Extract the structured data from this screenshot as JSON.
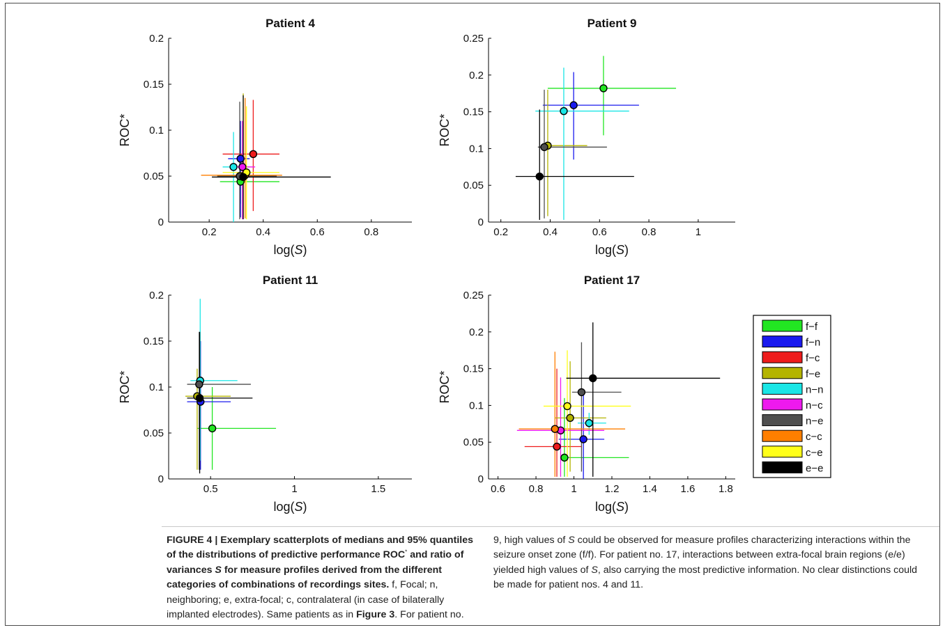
{
  "chart_data": [
    {
      "type": "scatter",
      "title": "Patient 4",
      "xlabel": "log(S)",
      "ylabel": "ROC*",
      "xlim": [
        0.05,
        0.95
      ],
      "ylim": [
        0,
        0.2
      ],
      "xticks": [
        0.2,
        0.4,
        0.6,
        0.8
      ],
      "xticklabels": [
        "0.2",
        "0.4",
        "0.6",
        "0.8"
      ],
      "yticks": [
        0,
        0.05,
        0.1,
        0.15,
        0.2
      ],
      "yticklabels": [
        "0",
        "0.05",
        "0.1",
        "0.15",
        "0.2"
      ],
      "points": [
        {
          "cat": "f-f",
          "x": 0.316,
          "y": 0.044,
          "xlo": 0.24,
          "xhi": 0.46,
          "ylo": 0.02,
          "yhi": 0.105
        },
        {
          "cat": "f-n",
          "x": 0.316,
          "y": 0.069,
          "xlo": 0.27,
          "xhi": 0.35,
          "ylo": 0.005,
          "yhi": 0.11
        },
        {
          "cat": "f-c",
          "x": 0.363,
          "y": 0.074,
          "xlo": 0.25,
          "xhi": 0.46,
          "ylo": 0.012,
          "yhi": 0.133
        },
        {
          "cat": "f-e",
          "x": 0.326,
          "y": 0.05,
          "xlo": 0.23,
          "xhi": 0.44,
          "ylo": 0.005,
          "yhi": 0.14
        },
        {
          "cat": "n-n",
          "x": 0.29,
          "y": 0.06,
          "xlo": 0.25,
          "xhi": 0.34,
          "ylo": 0.0,
          "yhi": 0.098
        },
        {
          "cat": "n-c",
          "x": 0.323,
          "y": 0.06,
          "xlo": 0.29,
          "xhi": 0.37,
          "ylo": 0.003,
          "yhi": 0.11
        },
        {
          "cat": "n-e",
          "x": 0.313,
          "y": 0.05,
          "xlo": 0.23,
          "xhi": 0.45,
          "ylo": 0.003,
          "yhi": 0.131
        },
        {
          "cat": "c-c",
          "x": 0.333,
          "y": 0.051,
          "xlo": 0.17,
          "xhi": 0.47,
          "ylo": 0.004,
          "yhi": 0.135
        },
        {
          "cat": "c-e",
          "x": 0.338,
          "y": 0.054,
          "xlo": 0.25,
          "xhi": 0.46,
          "ylo": 0.003,
          "yhi": 0.126
        },
        {
          "cat": "e-e",
          "x": 0.326,
          "y": 0.049,
          "xlo": 0.21,
          "xhi": 0.65,
          "ylo": 0.003,
          "yhi": 0.138
        }
      ]
    },
    {
      "type": "scatter",
      "title": "Patient 9",
      "xlabel": "log(S)",
      "ylabel": "ROC*",
      "xlim": [
        0.15,
        1.15
      ],
      "ylim": [
        0,
        0.25
      ],
      "xticks": [
        0.2,
        0.4,
        0.6,
        0.8,
        1
      ],
      "xticklabels": [
        "0.2",
        "0.4",
        "0.6",
        "0.8",
        "1"
      ],
      "yticks": [
        0,
        0.05,
        0.1,
        0.15,
        0.2,
        0.25
      ],
      "yticklabels": [
        "0",
        "0.05",
        "0.1",
        "0.15",
        "0.2",
        "0.25"
      ],
      "points": [
        {
          "cat": "f-f",
          "x": 0.616,
          "y": 0.182,
          "xlo": 0.39,
          "xhi": 0.91,
          "ylo": 0.118,
          "yhi": 0.226
        },
        {
          "cat": "f-n",
          "x": 0.495,
          "y": 0.159,
          "xlo": 0.37,
          "xhi": 0.76,
          "ylo": 0.085,
          "yhi": 0.204
        },
        {
          "cat": "f-e",
          "x": 0.39,
          "y": 0.104,
          "xlo": 0.37,
          "xhi": 0.55,
          "ylo": 0.008,
          "yhi": 0.18
        },
        {
          "cat": "n-n",
          "x": 0.455,
          "y": 0.151,
          "xlo": 0.34,
          "xhi": 0.72,
          "ylo": 0.003,
          "yhi": 0.21
        },
        {
          "cat": "n-e",
          "x": 0.376,
          "y": 0.102,
          "xlo": 0.35,
          "xhi": 0.63,
          "ylo": 0.005,
          "yhi": 0.18
        },
        {
          "cat": "e-e",
          "x": 0.357,
          "y": 0.062,
          "xlo": 0.26,
          "xhi": 0.74,
          "ylo": 0.003,
          "yhi": 0.153
        }
      ]
    },
    {
      "type": "scatter",
      "title": "Patient 11",
      "xlabel": "log(S)",
      "ylabel": "ROC*",
      "xlim": [
        0.25,
        1.7
      ],
      "ylim": [
        0,
        0.2
      ],
      "xticks": [
        0.5,
        1,
        1.5
      ],
      "xticklabels": [
        "0.5",
        "1",
        "1.5"
      ],
      "yticks": [
        0,
        0.05,
        0.1,
        0.15,
        0.2
      ],
      "yticklabels": [
        "0",
        "0.05",
        "0.1",
        "0.15",
        "0.2"
      ],
      "points": [
        {
          "cat": "f-f",
          "x": 0.51,
          "y": 0.055,
          "xlo": 0.42,
          "xhi": 0.89,
          "ylo": 0.01,
          "yhi": 0.1
        },
        {
          "cat": "f-n",
          "x": 0.44,
          "y": 0.084,
          "xlo": 0.36,
          "xhi": 0.62,
          "ylo": 0.01,
          "yhi": 0.15
        },
        {
          "cat": "f-e",
          "x": 0.42,
          "y": 0.09,
          "xlo": 0.35,
          "xhi": 0.62,
          "ylo": 0.01,
          "yhi": 0.12
        },
        {
          "cat": "n-n",
          "x": 0.438,
          "y": 0.107,
          "xlo": 0.38,
          "xhi": 0.66,
          "ylo": 0.02,
          "yhi": 0.196
        },
        {
          "cat": "n-e",
          "x": 0.432,
          "y": 0.103,
          "xlo": 0.36,
          "xhi": 0.74,
          "ylo": 0.01,
          "yhi": 0.16
        },
        {
          "cat": "e-e",
          "x": 0.435,
          "y": 0.088,
          "xlo": 0.36,
          "xhi": 0.75,
          "ylo": 0.006,
          "yhi": 0.16
        }
      ]
    },
    {
      "type": "scatter",
      "title": "Patient 17",
      "xlabel": "log(S)",
      "ylabel": "ROC*",
      "xlim": [
        0.55,
        1.85
      ],
      "ylim": [
        0,
        0.25
      ],
      "xticks": [
        0.6,
        0.8,
        1,
        1.2,
        1.4,
        1.6,
        1.8
      ],
      "xticklabels": [
        "0.6",
        "0.8",
        "1",
        "1.2",
        "1.4",
        "1.6",
        "1.8"
      ],
      "yticks": [
        0,
        0.05,
        0.1,
        0.15,
        0.2,
        0.25
      ],
      "yticklabels": [
        "0",
        "0.05",
        "0.1",
        "0.15",
        "0.2",
        "0.25"
      ],
      "points": [
        {
          "cat": "f-f",
          "x": 0.95,
          "y": 0.029,
          "xlo": 0.93,
          "xhi": 1.29,
          "ylo": 0.003,
          "yhi": 0.11
        },
        {
          "cat": "f-n",
          "x": 1.05,
          "y": 0.054,
          "xlo": 0.92,
          "xhi": 1.16,
          "ylo": 0.0,
          "yhi": 0.12
        },
        {
          "cat": "f-c",
          "x": 0.91,
          "y": 0.044,
          "xlo": 0.74,
          "xhi": 1.04,
          "ylo": 0.003,
          "yhi": 0.15
        },
        {
          "cat": "f-e",
          "x": 0.98,
          "y": 0.083,
          "xlo": 0.9,
          "xhi": 1.17,
          "ylo": 0.01,
          "yhi": 0.16
        },
        {
          "cat": "n-n",
          "x": 1.08,
          "y": 0.076,
          "xlo": 1.02,
          "xhi": 1.17,
          "ylo": 0.06,
          "yhi": 0.09
        },
        {
          "cat": "n-c",
          "x": 0.93,
          "y": 0.066,
          "xlo": 0.7,
          "xhi": 1.16,
          "ylo": 0.003,
          "yhi": 0.138
        },
        {
          "cat": "n-e",
          "x": 1.04,
          "y": 0.118,
          "xlo": 0.99,
          "xhi": 1.25,
          "ylo": 0.01,
          "yhi": 0.186
        },
        {
          "cat": "c-c",
          "x": 0.9,
          "y": 0.068,
          "xlo": 0.71,
          "xhi": 1.27,
          "ylo": 0.003,
          "yhi": 0.173
        },
        {
          "cat": "c-e",
          "x": 0.965,
          "y": 0.099,
          "xlo": 0.84,
          "xhi": 1.3,
          "ylo": 0.003,
          "yhi": 0.175
        },
        {
          "cat": "e-e",
          "x": 1.1,
          "y": 0.137,
          "xlo": 0.96,
          "xhi": 1.77,
          "ylo": 0.003,
          "yhi": 0.213
        }
      ]
    }
  ],
  "legend": {
    "placement": "right",
    "items": [
      {
        "label": "f−f",
        "cat": "f-f",
        "color": "#22e622"
      },
      {
        "label": "f−n",
        "cat": "f-n",
        "color": "#1a1aee"
      },
      {
        "label": "f−c",
        "cat": "f-c",
        "color": "#ee1c1c"
      },
      {
        "label": "f−e",
        "cat": "f-e",
        "color": "#b4b400"
      },
      {
        "label": "n−n",
        "cat": "n-n",
        "color": "#19e6e6"
      },
      {
        "label": "n−c",
        "cat": "n-c",
        "color": "#ee19ee"
      },
      {
        "label": "n−e",
        "cat": "n-e",
        "color": "#4f4f4f"
      },
      {
        "label": "c−c",
        "cat": "c-c",
        "color": "#ff7f00"
      },
      {
        "label": "c−e",
        "cat": "c-e",
        "color": "#ffff19"
      },
      {
        "label": "e−e",
        "cat": "e-e",
        "color": "#000000"
      }
    ]
  },
  "caption": {
    "left": {
      "fig_label": "FIGURE 4 | ",
      "bold_a": "Exemplary scatterplots of medians and 95% quantiles of the distributions of predictive performance ROC",
      "bold_sup": "*",
      "bold_b": " and ratio of variances ",
      "bold_s": "S",
      "bold_c": " for measure profiles derived from the different categories of combinations of recordings sites.",
      "text_a": " f, Focal; n, neighboring; e, extra-focal; c, contralateral (in case of bilaterally implanted electrodes). Same patients as in ",
      "ref": "Figure 3",
      "text_b": ". For patient no."
    },
    "right": {
      "text_a": "9, high values of ",
      "s1": "S",
      "text_b": " could be observed for measure profiles characterizing interactions within the seizure onset zone (f/f). For patient no. 17, interactions between extra-focal brain regions (e/e) yielded high values of ",
      "s2": "S",
      "text_c": ", also carrying the most predictive information. No clear distinctions could be made for patient nos. 4 and 11."
    }
  }
}
